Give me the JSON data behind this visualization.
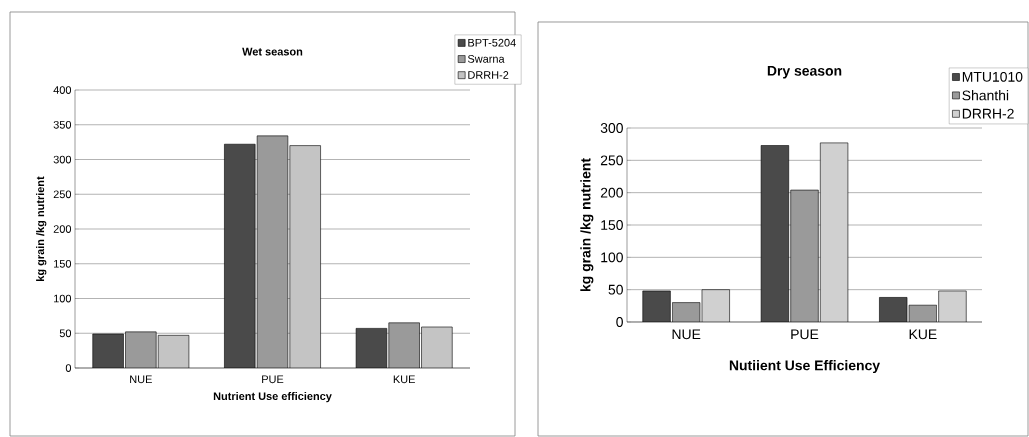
{
  "chart_data": [
    {
      "type": "bar",
      "title": "Wet season",
      "xlabel": "Nutrient Use efficiency",
      "ylabel": "kg grain /kg nutrient",
      "categories": [
        "NUE",
        "PUE",
        "KUE"
      ],
      "series": [
        {
          "name": "BPT-5204",
          "color": "#4a4a4a",
          "values": [
            49,
            322,
            57
          ]
        },
        {
          "name": "Swarna",
          "color": "#9a9a9a",
          "values": [
            52,
            334,
            65
          ]
        },
        {
          "name": "DRRH-2",
          "color": "#c4c4c4",
          "values": [
            47,
            320,
            59
          ]
        }
      ],
      "ylim": [
        0,
        400
      ],
      "yticks": [
        0,
        50,
        100,
        150,
        200,
        250,
        300,
        350,
        400
      ],
      "grid": "y",
      "legend": "top right"
    },
    {
      "type": "bar",
      "title": "Dry season",
      "xlabel": "Nutiient Use Efficiency",
      "ylabel": "kg grain /kg nutrient",
      "categories": [
        "NUE",
        "PUE",
        "KUE"
      ],
      "series": [
        {
          "name": "MTU1010",
          "color": "#4a4a4a",
          "values": [
            48,
            273,
            38
          ]
        },
        {
          "name": "Shanthi",
          "color": "#9a9a9a",
          "values": [
            30,
            204,
            26
          ]
        },
        {
          "name": "DRRH-2",
          "color": "#d0d0d0",
          "values": [
            50,
            277,
            48
          ]
        }
      ],
      "ylim": [
        0,
        300
      ],
      "yticks": [
        0,
        50,
        100,
        150,
        200,
        250,
        300
      ],
      "grid": "y",
      "legend": "top right"
    }
  ]
}
